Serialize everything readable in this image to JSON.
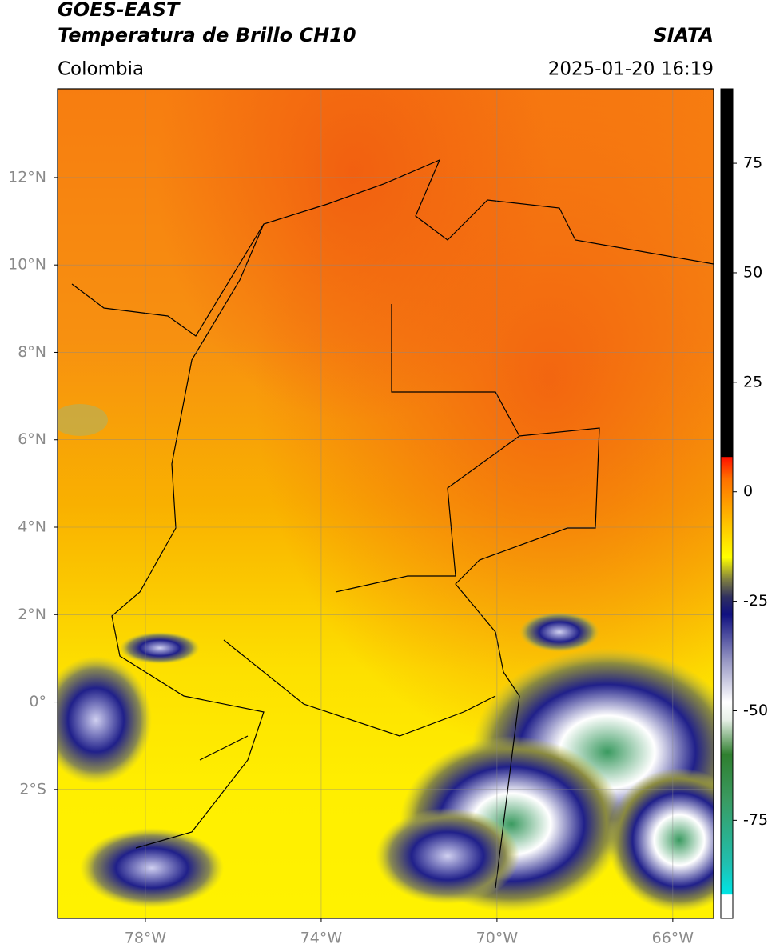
{
  "header": {
    "title_line1": "GOES-EAST",
    "title_line2": "Temperatura de Brillo CH10",
    "source": "SIATA",
    "region": "Colombia",
    "datetime": "2025-01-20 16:19"
  },
  "map": {
    "xlim": [
      -80,
      -65.07
    ],
    "ylim": [
      -4.95,
      14.03
    ],
    "xticks": [
      {
        "value": -78,
        "label": "78°W"
      },
      {
        "value": -74,
        "label": "74°W"
      },
      {
        "value": -70,
        "label": "70°W"
      },
      {
        "value": -66,
        "label": "66°W"
      }
    ],
    "yticks": [
      {
        "value": 12,
        "label": "12°N"
      },
      {
        "value": 10,
        "label": "10°N"
      },
      {
        "value": 8,
        "label": "8°N"
      },
      {
        "value": 6,
        "label": "6°N"
      },
      {
        "value": 4,
        "label": "4°N"
      },
      {
        "value": 2,
        "label": "2°N"
      },
      {
        "value": 0,
        "label": "0°"
      },
      {
        "value": -2,
        "label": "2°S"
      }
    ],
    "grid": true
  },
  "colorbar": {
    "lim": [
      -97.4,
      92
    ],
    "ticks": [
      75,
      50,
      25,
      0,
      -25,
      -50,
      -75
    ],
    "stops": [
      [
        -97.4,
        "#ffffff"
      ],
      [
        -92,
        "#ffffff"
      ],
      [
        -91.9,
        "#00e5e5"
      ],
      [
        -85,
        "#20c0b0"
      ],
      [
        -70,
        "#3a9a60"
      ],
      [
        -60,
        "#2f7f2f"
      ],
      [
        -52,
        "#e8f0e8"
      ],
      [
        -48,
        "#ffffff"
      ],
      [
        -38,
        "#9090c0"
      ],
      [
        -28,
        "#101080"
      ],
      [
        -24,
        "#303060"
      ],
      [
        -20,
        "#808040"
      ],
      [
        -15,
        "#ffff00"
      ],
      [
        -5,
        "#ffb000"
      ],
      [
        3,
        "#ff7000"
      ],
      [
        7.9,
        "#ff1000"
      ],
      [
        8,
        "#000000"
      ],
      [
        92,
        "#000000"
      ]
    ]
  }
}
